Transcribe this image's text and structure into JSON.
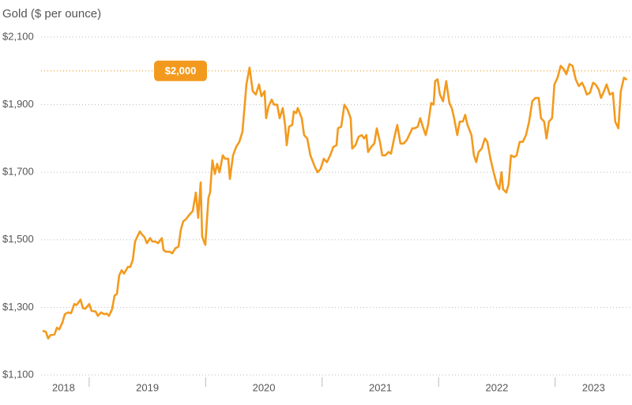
{
  "chart_data": {
    "type": "line",
    "title": "Gold ($ per ounce)",
    "ylim": [
      1100,
      2100
    ],
    "yticks": [
      {
        "value": 1100,
        "label": "$1,100"
      },
      {
        "value": 1300,
        "label": "$1,300"
      },
      {
        "value": 1500,
        "label": "$1,500"
      },
      {
        "value": 1700,
        "label": "$1,700"
      },
      {
        "value": 1900,
        "label": "$1,900"
      },
      {
        "value": 2100,
        "label": "$2,100"
      }
    ],
    "grid": true,
    "xlim": [
      2018.56,
      2023.66
    ],
    "x_categories": [
      "2018",
      "2019",
      "2020",
      "2021",
      "2022",
      "2023"
    ],
    "reference_line": {
      "value": 2000,
      "label": "$2,000",
      "color": "#f39a1e"
    },
    "x": [
      2018.607,
      2018.628,
      2018.648,
      2018.668,
      2018.702,
      2018.723,
      2018.743,
      2018.77,
      2018.791,
      2018.818,
      2018.845,
      2018.872,
      2018.892,
      2018.926,
      2018.946,
      2018.967,
      2019.001,
      2019.021,
      2019.055,
      2019.075,
      2019.102,
      2019.13,
      2019.15,
      2019.17,
      2019.197,
      2019.218,
      2019.238,
      2019.258,
      2019.279,
      2019.299,
      2019.333,
      2019.353,
      2019.374,
      2019.394,
      2019.414,
      2019.435,
      2019.455,
      2019.475,
      2019.496,
      2019.523,
      2019.543,
      2019.57,
      2019.591,
      2019.624,
      2019.638,
      2019.658,
      2019.692,
      2019.713,
      2019.74,
      2019.767,
      2019.787,
      2019.808,
      2019.828,
      2019.862,
      2019.889,
      2019.916,
      2019.936,
      2019.957,
      2019.97,
      2019.997,
      2020.024,
      2020.038,
      2020.058,
      2020.079,
      2020.099,
      2020.119,
      2020.147,
      2020.167,
      2020.194,
      2020.208,
      2020.235,
      2020.262,
      2020.289,
      2020.316,
      2020.35,
      2020.377,
      2020.404,
      2020.431,
      2020.458,
      2020.479,
      2020.506,
      2020.519,
      2020.54,
      2020.567,
      2020.587,
      2020.614,
      2020.635,
      2020.662,
      2020.682,
      2020.696,
      2020.716,
      2020.743,
      2020.757,
      2020.777,
      2020.791,
      2020.825,
      2020.845,
      2020.872,
      2020.899,
      2020.933,
      2020.96,
      2020.987,
      2021.014,
      2021.041,
      2021.069,
      2021.096,
      2021.123,
      2021.136,
      2021.164,
      2021.191,
      2021.218,
      2021.245,
      2021.258,
      2021.286,
      2021.313,
      2021.34,
      2021.36,
      2021.38,
      2021.394,
      2021.421,
      2021.448,
      2021.469,
      2021.496,
      2021.516,
      2021.543,
      2021.57,
      2021.591,
      2021.618,
      2021.645,
      2021.672,
      2021.699,
      2021.726,
      2021.747,
      2021.774,
      2021.794,
      2021.821,
      2021.842,
      2021.869,
      2021.889,
      2021.909,
      2021.936,
      2021.957,
      2021.97,
      2021.991,
      2022.011,
      2022.038,
      2022.065,
      2022.092,
      2022.113,
      2022.133,
      2022.16,
      2022.181,
      2022.208,
      2022.228,
      2022.248,
      2022.282,
      2022.303,
      2022.323,
      2022.343,
      2022.37,
      2022.397,
      2022.418,
      2022.445,
      2022.472,
      2022.499,
      2022.52,
      2022.54,
      2022.553,
      2022.581,
      2022.601,
      2022.621,
      2022.648,
      2022.669,
      2022.696,
      2022.723,
      2022.75,
      2022.777,
      2022.804,
      2022.831,
      2022.859,
      2022.879,
      2022.906,
      2022.926,
      2022.947,
      2022.974,
      2022.994,
      2023.021,
      2023.048,
      2023.075,
      2023.096,
      2023.123,
      2023.15,
      2023.177,
      2023.204,
      2023.231,
      2023.252,
      2023.272,
      2023.299,
      2023.326,
      2023.347,
      2023.374,
      2023.394,
      2023.414,
      2023.442,
      2023.469,
      2023.496,
      2023.516,
      2023.543,
      2023.564,
      2023.591,
      2023.611
    ],
    "series": [
      {
        "name": "Gold",
        "color": "#f39a1e",
        "values": [
          1230,
          1228,
          1208,
          1218,
          1220,
          1240,
          1235,
          1255,
          1280,
          1285,
          1283,
          1310,
          1307,
          1323,
          1298,
          1296,
          1310,
          1290,
          1288,
          1275,
          1285,
          1280,
          1282,
          1275,
          1295,
          1335,
          1340,
          1395,
          1410,
          1400,
          1420,
          1420,
          1440,
          1495,
          1510,
          1525,
          1515,
          1508,
          1490,
          1505,
          1495,
          1495,
          1490,
          1505,
          1470,
          1465,
          1465,
          1460,
          1475,
          1480,
          1530,
          1555,
          1560,
          1575,
          1585,
          1640,
          1565,
          1670,
          1510,
          1485,
          1625,
          1640,
          1735,
          1695,
          1725,
          1700,
          1750,
          1740,
          1740,
          1680,
          1750,
          1775,
          1790,
          1820,
          1960,
          2010,
          1940,
          1930,
          1960,
          1925,
          1940,
          1860,
          1895,
          1915,
          1900,
          1900,
          1860,
          1890,
          1840,
          1780,
          1835,
          1840,
          1880,
          1875,
          1890,
          1860,
          1810,
          1800,
          1750,
          1720,
          1700,
          1710,
          1740,
          1730,
          1750,
          1775,
          1780,
          1830,
          1835,
          1900,
          1885,
          1860,
          1770,
          1780,
          1805,
          1810,
          1800,
          1810,
          1760,
          1775,
          1785,
          1830,
          1790,
          1750,
          1750,
          1760,
          1755,
          1800,
          1840,
          1785,
          1785,
          1795,
          1810,
          1830,
          1830,
          1835,
          1860,
          1830,
          1810,
          1840,
          1905,
          1900,
          1970,
          1975,
          1930,
          1910,
          1970,
          1905,
          1890,
          1860,
          1810,
          1850,
          1850,
          1870,
          1840,
          1810,
          1750,
          1730,
          1760,
          1770,
          1800,
          1790,
          1740,
          1700,
          1665,
          1650,
          1700,
          1650,
          1640,
          1665,
          1750,
          1745,
          1750,
          1790,
          1790,
          1810,
          1850,
          1910,
          1920,
          1920,
          1860,
          1850,
          1800,
          1850,
          1860,
          1960,
          1980,
          2015,
          2005,
          1990,
          2020,
          2015,
          1975,
          1955,
          1965,
          1950,
          1930,
          1935,
          1965,
          1960,
          1945,
          1920,
          1935,
          1960,
          1930,
          1935,
          1850,
          1830,
          1940,
          1980,
          1975
        ]
      }
    ]
  }
}
